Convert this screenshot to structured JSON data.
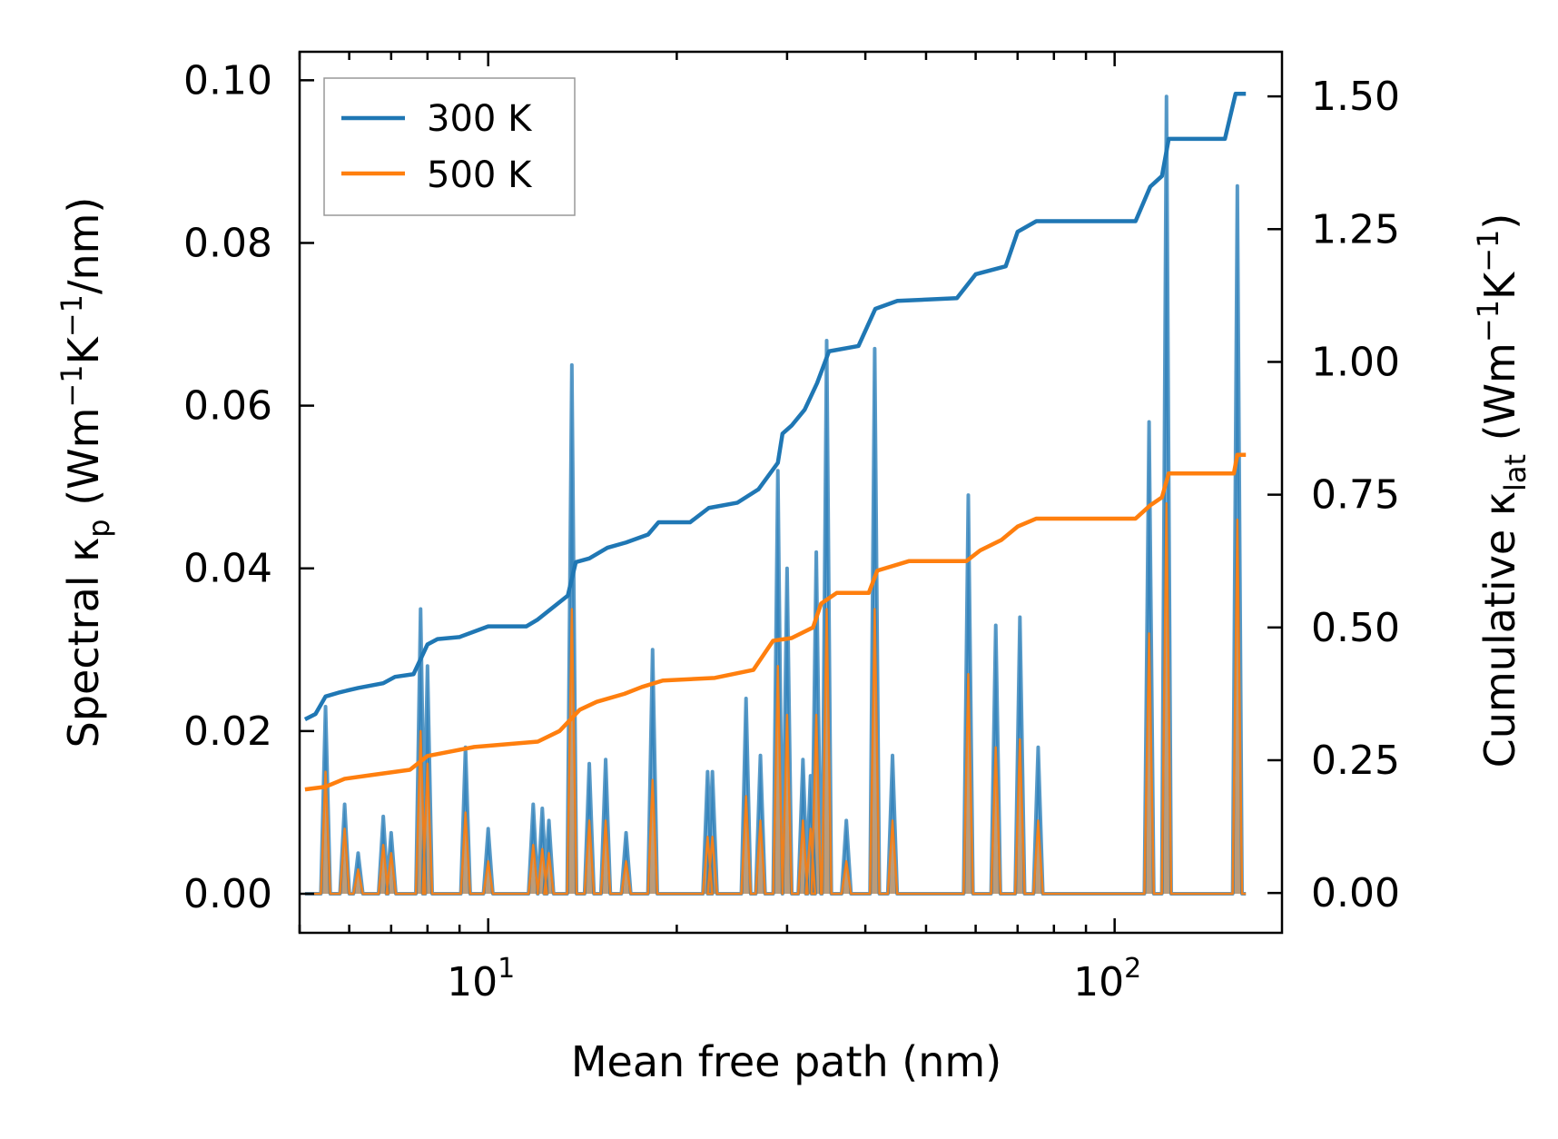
{
  "chart_data": {
    "type": "line",
    "title": "",
    "xlabel": "Mean free path (nm)",
    "xscale": "log",
    "xlim": [
      5,
      185
    ],
    "x_ticks": [
      {
        "value": 10,
        "base": "10",
        "exp": "1"
      },
      {
        "value": 100,
        "base": "10",
        "exp": "2"
      }
    ],
    "ylabel_left": {
      "main": "Spectral κ",
      "sub": "p",
      "unit_open": " (Wm",
      "sup1": "−1",
      "unit_mid": "K",
      "sup2": "−1",
      "unit_close": "/nm)"
    },
    "ylim_left": [
      -0.0048,
      0.1035
    ],
    "yticks_left": [
      "0.00",
      "0.02",
      "0.04",
      "0.06",
      "0.08",
      "0.10"
    ],
    "ylabel_right": {
      "main": "Cumulative κ",
      "sub": "lat",
      "unit_open": " (Wm",
      "sup1": "−1",
      "unit_mid": "K",
      "sup2": "−1",
      "unit_close": ")"
    },
    "ylim_right": [
      -0.075,
      1.584
    ],
    "yticks_right": [
      "0.00",
      "0.25",
      "0.50",
      "0.75",
      "1.00",
      "1.25",
      "1.50"
    ],
    "legend": {
      "position": "top-left",
      "entries": [
        {
          "label": "300 K",
          "color": "#1f77b4"
        },
        {
          "label": "500 K",
          "color": "#ff7f0e"
        }
      ]
    },
    "spectral_series": [
      {
        "name": "300 K",
        "color": "#1f77b4",
        "peaks": [
          [
            5.5,
            0.023
          ],
          [
            5.9,
            0.011
          ],
          [
            6.2,
            0.005
          ],
          [
            6.8,
            0.0095
          ],
          [
            7.0,
            0.0075
          ],
          [
            7.8,
            0.035
          ],
          [
            8.0,
            0.028
          ],
          [
            9.2,
            0.018
          ],
          [
            10.0,
            0.008
          ],
          [
            11.8,
            0.011
          ],
          [
            12.2,
            0.0105
          ],
          [
            12.5,
            0.009
          ],
          [
            13.6,
            0.065
          ],
          [
            14.5,
            0.016
          ],
          [
            15.4,
            0.0165
          ],
          [
            16.6,
            0.0075
          ],
          [
            18.3,
            0.03
          ],
          [
            22.4,
            0.015
          ],
          [
            22.8,
            0.015
          ],
          [
            25.8,
            0.024
          ],
          [
            27.2,
            0.017
          ],
          [
            29.0,
            0.052
          ],
          [
            30.0,
            0.04
          ],
          [
            31.8,
            0.0165
          ],
          [
            32.7,
            0.0145
          ],
          [
            33.4,
            0.042
          ],
          [
            34.7,
            0.068
          ],
          [
            37.3,
            0.009
          ],
          [
            41.4,
            0.067
          ],
          [
            44.2,
            0.017
          ],
          [
            58.4,
            0.049
          ],
          [
            64.6,
            0.033
          ],
          [
            70.6,
            0.034
          ],
          [
            75.5,
            0.018
          ],
          [
            113.5,
            0.058
          ],
          [
            121.0,
            0.098
          ],
          [
            157.0,
            0.087
          ]
        ]
      },
      {
        "name": "500 K",
        "color": "#ff7f0e",
        "peaks": [
          [
            5.5,
            0.015
          ],
          [
            5.9,
            0.008
          ],
          [
            6.2,
            0.003
          ],
          [
            6.8,
            0.006
          ],
          [
            7.0,
            0.005
          ],
          [
            7.8,
            0.02
          ],
          [
            8.0,
            0.016
          ],
          [
            9.2,
            0.01
          ],
          [
            10.0,
            0.004
          ],
          [
            11.8,
            0.006
          ],
          [
            12.2,
            0.0055
          ],
          [
            12.5,
            0.005
          ],
          [
            13.6,
            0.035
          ],
          [
            14.5,
            0.009
          ],
          [
            15.4,
            0.009
          ],
          [
            16.6,
            0.004
          ],
          [
            18.3,
            0.014
          ],
          [
            22.4,
            0.007
          ],
          [
            22.8,
            0.007
          ],
          [
            25.8,
            0.012
          ],
          [
            27.2,
            0.009
          ],
          [
            29.0,
            0.028
          ],
          [
            30.0,
            0.022
          ],
          [
            31.8,
            0.009
          ],
          [
            32.7,
            0.008
          ],
          [
            33.4,
            0.022
          ],
          [
            34.7,
            0.035
          ],
          [
            37.3,
            0.004
          ],
          [
            41.4,
            0.035
          ],
          [
            44.2,
            0.009
          ],
          [
            58.4,
            0.027
          ],
          [
            64.6,
            0.018
          ],
          [
            70.6,
            0.019
          ],
          [
            75.5,
            0.009
          ],
          [
            113.5,
            0.032
          ],
          [
            121.0,
            0.048
          ],
          [
            157.0,
            0.046
          ]
        ]
      }
    ],
    "cumulative_series": [
      {
        "name": "300 K",
        "color": "#1f77b4",
        "points": [
          [
            5.1,
            0.327
          ],
          [
            5.3,
            0.337
          ],
          [
            5.5,
            0.37
          ],
          [
            5.8,
            0.378
          ],
          [
            6.2,
            0.386
          ],
          [
            6.8,
            0.395
          ],
          [
            7.1,
            0.407
          ],
          [
            7.6,
            0.412
          ],
          [
            8.0,
            0.468
          ],
          [
            8.3,
            0.478
          ],
          [
            9.0,
            0.482
          ],
          [
            10.0,
            0.502
          ],
          [
            11.5,
            0.502
          ],
          [
            12.0,
            0.515
          ],
          [
            12.6,
            0.535
          ],
          [
            13.4,
            0.56
          ],
          [
            13.8,
            0.623
          ],
          [
            14.5,
            0.63
          ],
          [
            15.5,
            0.65
          ],
          [
            16.6,
            0.66
          ],
          [
            18.0,
            0.675
          ],
          [
            18.7,
            0.698
          ],
          [
            21.0,
            0.698
          ],
          [
            22.5,
            0.725
          ],
          [
            25.0,
            0.735
          ],
          [
            27.0,
            0.76
          ],
          [
            29.0,
            0.81
          ],
          [
            29.5,
            0.865
          ],
          [
            30.5,
            0.88
          ],
          [
            32.0,
            0.91
          ],
          [
            33.5,
            0.96
          ],
          [
            35.0,
            1.02
          ],
          [
            39.0,
            1.03
          ],
          [
            41.5,
            1.1
          ],
          [
            45.0,
            1.115
          ],
          [
            56.0,
            1.12
          ],
          [
            60.0,
            1.165
          ],
          [
            67.0,
            1.18
          ],
          [
            70.0,
            1.245
          ],
          [
            75.0,
            1.265
          ],
          [
            108.0,
            1.265
          ],
          [
            114.0,
            1.33
          ],
          [
            119.0,
            1.35
          ],
          [
            122.0,
            1.42
          ],
          [
            150.0,
            1.42
          ],
          [
            156.0,
            1.505
          ],
          [
            162.0,
            1.505
          ]
        ]
      },
      {
        "name": "500 K",
        "color": "#ff7f0e",
        "points": [
          [
            5.1,
            0.195
          ],
          [
            5.5,
            0.2
          ],
          [
            5.9,
            0.215
          ],
          [
            6.5,
            0.222
          ],
          [
            7.5,
            0.232
          ],
          [
            8.0,
            0.258
          ],
          [
            8.5,
            0.264
          ],
          [
            9.5,
            0.275
          ],
          [
            12.0,
            0.285
          ],
          [
            13.0,
            0.305
          ],
          [
            14.0,
            0.345
          ],
          [
            14.9,
            0.36
          ],
          [
            16.5,
            0.375
          ],
          [
            17.6,
            0.388
          ],
          [
            19.0,
            0.4
          ],
          [
            23.0,
            0.405
          ],
          [
            26.5,
            0.42
          ],
          [
            28.5,
            0.475
          ],
          [
            30.5,
            0.48
          ],
          [
            33.0,
            0.5
          ],
          [
            34.0,
            0.545
          ],
          [
            36.0,
            0.565
          ],
          [
            40.5,
            0.565
          ],
          [
            41.8,
            0.607
          ],
          [
            47.0,
            0.625
          ],
          [
            58.0,
            0.625
          ],
          [
            61.0,
            0.645
          ],
          [
            66.0,
            0.665
          ],
          [
            70.0,
            0.69
          ],
          [
            75.0,
            0.705
          ],
          [
            108.0,
            0.705
          ],
          [
            114.0,
            0.73
          ],
          [
            119.0,
            0.745
          ],
          [
            122.0,
            0.79
          ],
          [
            155.0,
            0.79
          ],
          [
            157.0,
            0.825
          ],
          [
            162.0,
            0.825
          ]
        ]
      }
    ]
  }
}
